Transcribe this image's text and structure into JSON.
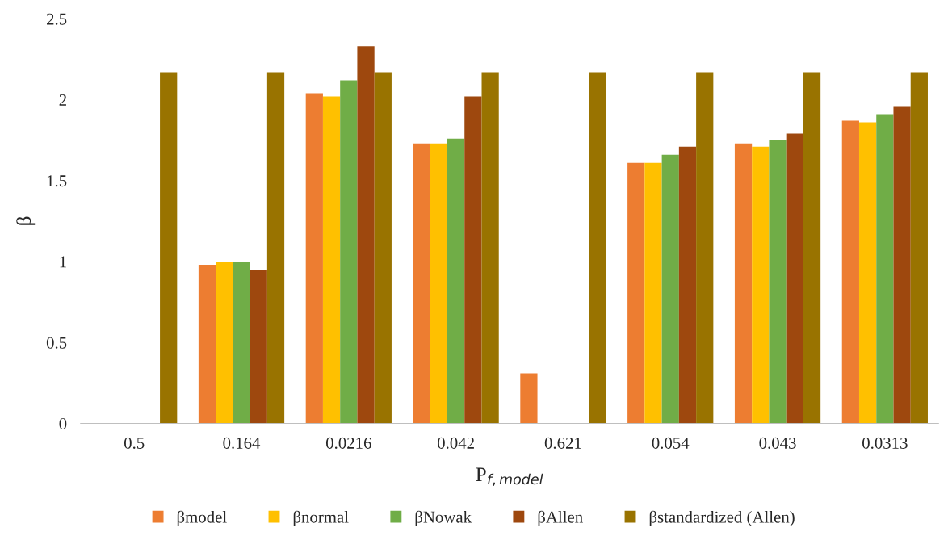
{
  "chart_data": {
    "type": "bar",
    "xlabel": "P$_{f,model}$",
    "ylabel": "β",
    "categories": [
      "0.5",
      "0.164",
      "0.0216",
      "0.042",
      "0.621",
      "0.054",
      "0.043",
      "0.0313"
    ],
    "series": [
      {
        "name": "βmodel",
        "color": "#ed7d31",
        "values": [
          null,
          0.98,
          2.04,
          1.73,
          0.31,
          1.61,
          1.73,
          1.87
        ]
      },
      {
        "name": "βnormal",
        "color": "#ffc000",
        "values": [
          null,
          1.0,
          2.02,
          1.73,
          null,
          1.61,
          1.71,
          1.86
        ]
      },
      {
        "name": "βNowak",
        "color": "#70ad47",
        "values": [
          null,
          1.0,
          2.12,
          1.76,
          null,
          1.66,
          1.75,
          1.91
        ]
      },
      {
        "name": "βAllen",
        "color": "#9e480e",
        "values": [
          null,
          0.95,
          2.33,
          2.02,
          null,
          1.71,
          1.79,
          1.96
        ]
      },
      {
        "name": "βstandardized (Allen)",
        "color": "#997300",
        "values": [
          2.17,
          2.17,
          2.17,
          2.17,
          2.17,
          2.17,
          2.17,
          2.17
        ]
      }
    ],
    "ylim": [
      0,
      2.5
    ],
    "yticks": [
      0,
      0.5,
      1,
      1.5,
      2,
      2.5
    ],
    "grid": false,
    "legend": "bottom"
  }
}
